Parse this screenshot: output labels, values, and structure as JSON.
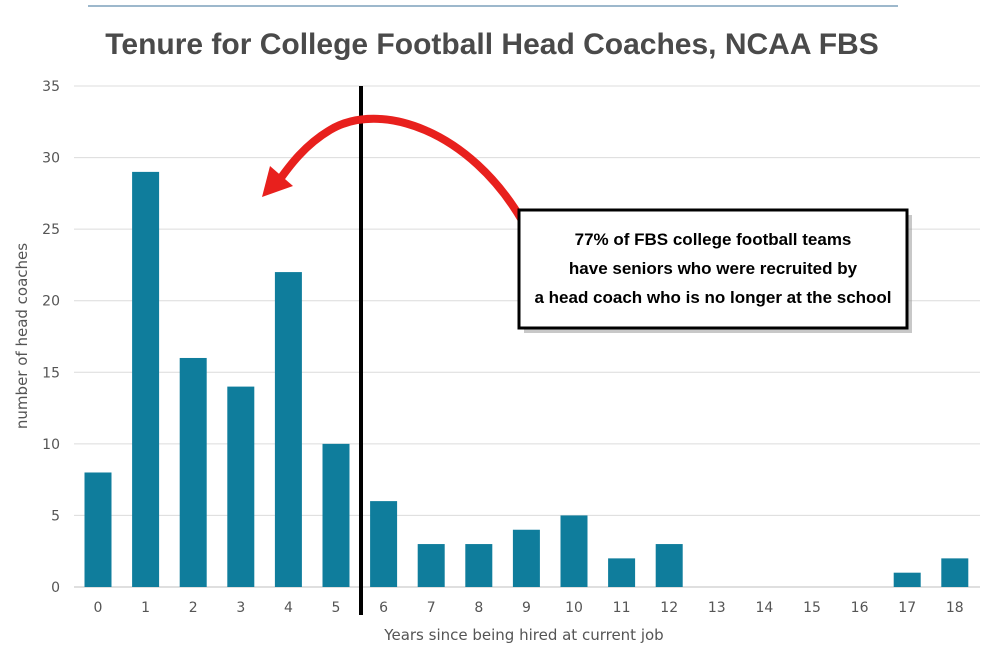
{
  "chart_data": {
    "type": "bar",
    "title": "Tenure for College Football Head Coaches, NCAA FBS",
    "xlabel": "Years since being hired at current job",
    "ylabel": "number of head coaches",
    "categories": [
      "0",
      "1",
      "2",
      "3",
      "4",
      "5",
      "6",
      "7",
      "8",
      "9",
      "10",
      "11",
      "12",
      "13",
      "14",
      "15",
      "16",
      "17",
      "18"
    ],
    "values": [
      8,
      29,
      16,
      14,
      22,
      10,
      6,
      3,
      3,
      4,
      5,
      2,
      3,
      0,
      0,
      0,
      0,
      1,
      2
    ],
    "ylim": [
      0,
      35
    ],
    "yticks": [
      0,
      5,
      10,
      15,
      20,
      25,
      30,
      35
    ],
    "grid": true,
    "colors": {
      "bar": "#0f7d9c",
      "grid": "#dcdcdc",
      "divider_line": "#000000",
      "arrow": "#e8201d"
    },
    "divider_after_category": "5",
    "annotation": {
      "lines": [
        "77% of FBS college football teams",
        "have seniors who were recruited by",
        "a head coach who is no longer at the school"
      ]
    }
  }
}
